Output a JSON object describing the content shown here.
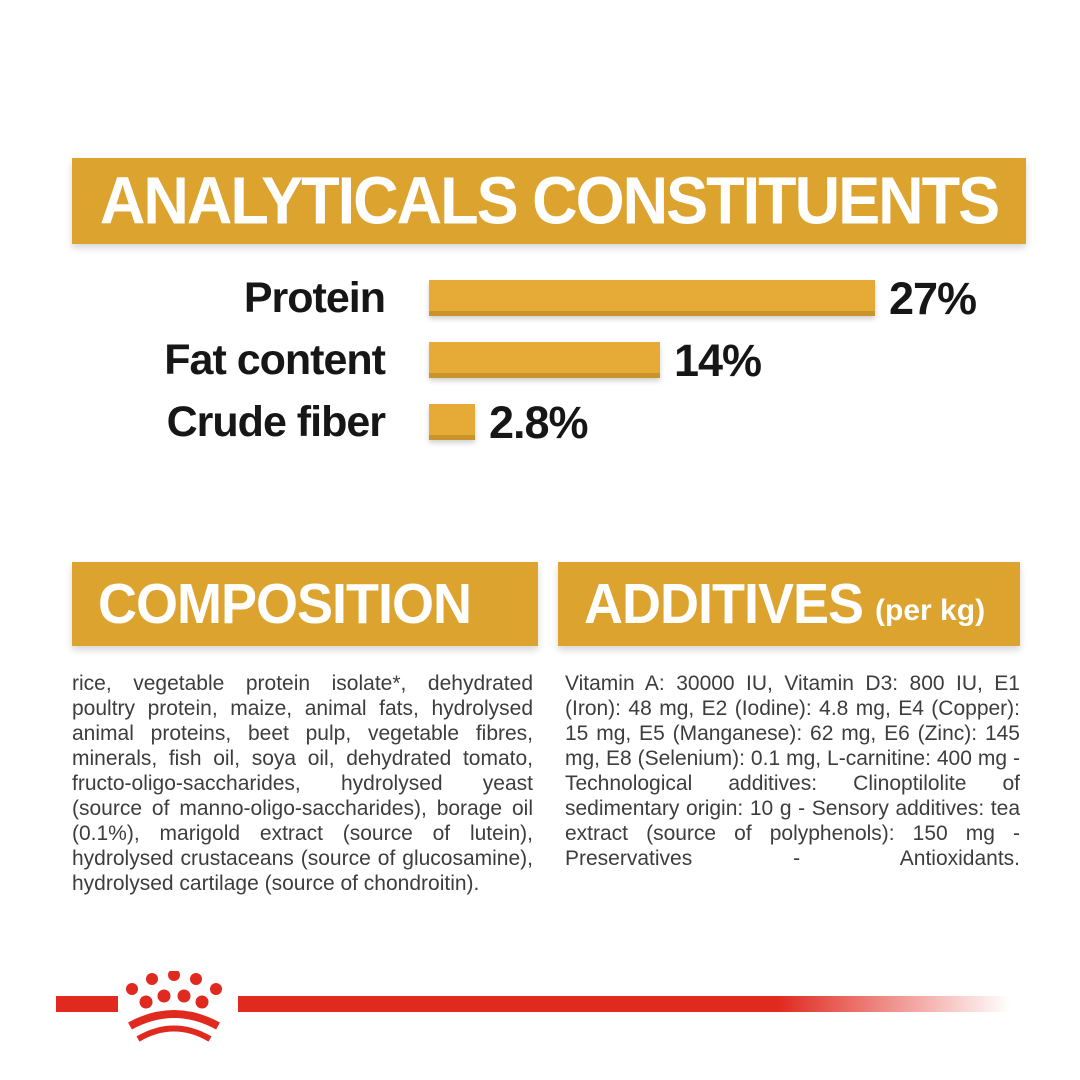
{
  "colors": {
    "bg": "#ffffff",
    "gold": "#dda32f",
    "gold_bar": "#e6ab36",
    "gold_bar_edge": "#c9952a",
    "red": "#e02a20",
    "ink": "#161616",
    "body_ink": "#3d3d3d"
  },
  "analyticals": {
    "title": "ANALYTICALS CONSTITUENTS"
  },
  "chart_data": {
    "type": "bar",
    "orientation": "horizontal",
    "title": "ANALYTICALS CONSTITUENTS",
    "categories": [
      "Protein",
      "Fat content",
      "Crude fiber"
    ],
    "values": [
      27,
      14,
      2.8
    ],
    "value_labels": [
      "27%",
      "14%",
      "2.8%"
    ],
    "unit": "%",
    "xlim": [
      0,
      27
    ],
    "grid": false,
    "bar_color": "#e6ab36",
    "label_color": "#161616"
  },
  "composition": {
    "title": "COMPOSITION",
    "body": "rice, vegetable protein isolate*, dehydrated poultry protein, maize, animal fats, hydrolysed animal proteins, beet pulp, vegetable fibres, minerals, fish oil, soya oil, dehydrated tomato, fructo-oligo-saccharides, hydrolysed yeast (source of manno-oligo-saccharides), borage oil (0.1%), marigold extract (source of lutein), hydrolysed crustaceans (source of glucosamine), hydrolysed cartilage (source of chondroitin)."
  },
  "additives": {
    "title": "ADDITIVES",
    "subtitle": "(per kg)",
    "body": "Vitamin A: 30000 IU, Vitamin D3: 800 IU, E1 (Iron): 48 mg, E2 (Iodine): 4.8 mg, E4 (Copper): 15 mg, E5 (Manganese): 62 mg, E6 (Zinc): 145 mg, E8 (Selenium): 0.1 mg, L-carnitine: 400 mg - Technological additives: Clinoptilolite of sedimentary origin: 10 g - Sensory additives: tea extract (source of polyphenols): 150 mg - Preservatives - Antioxidants."
  },
  "footer": {
    "logo": "royal-canin-crown"
  }
}
